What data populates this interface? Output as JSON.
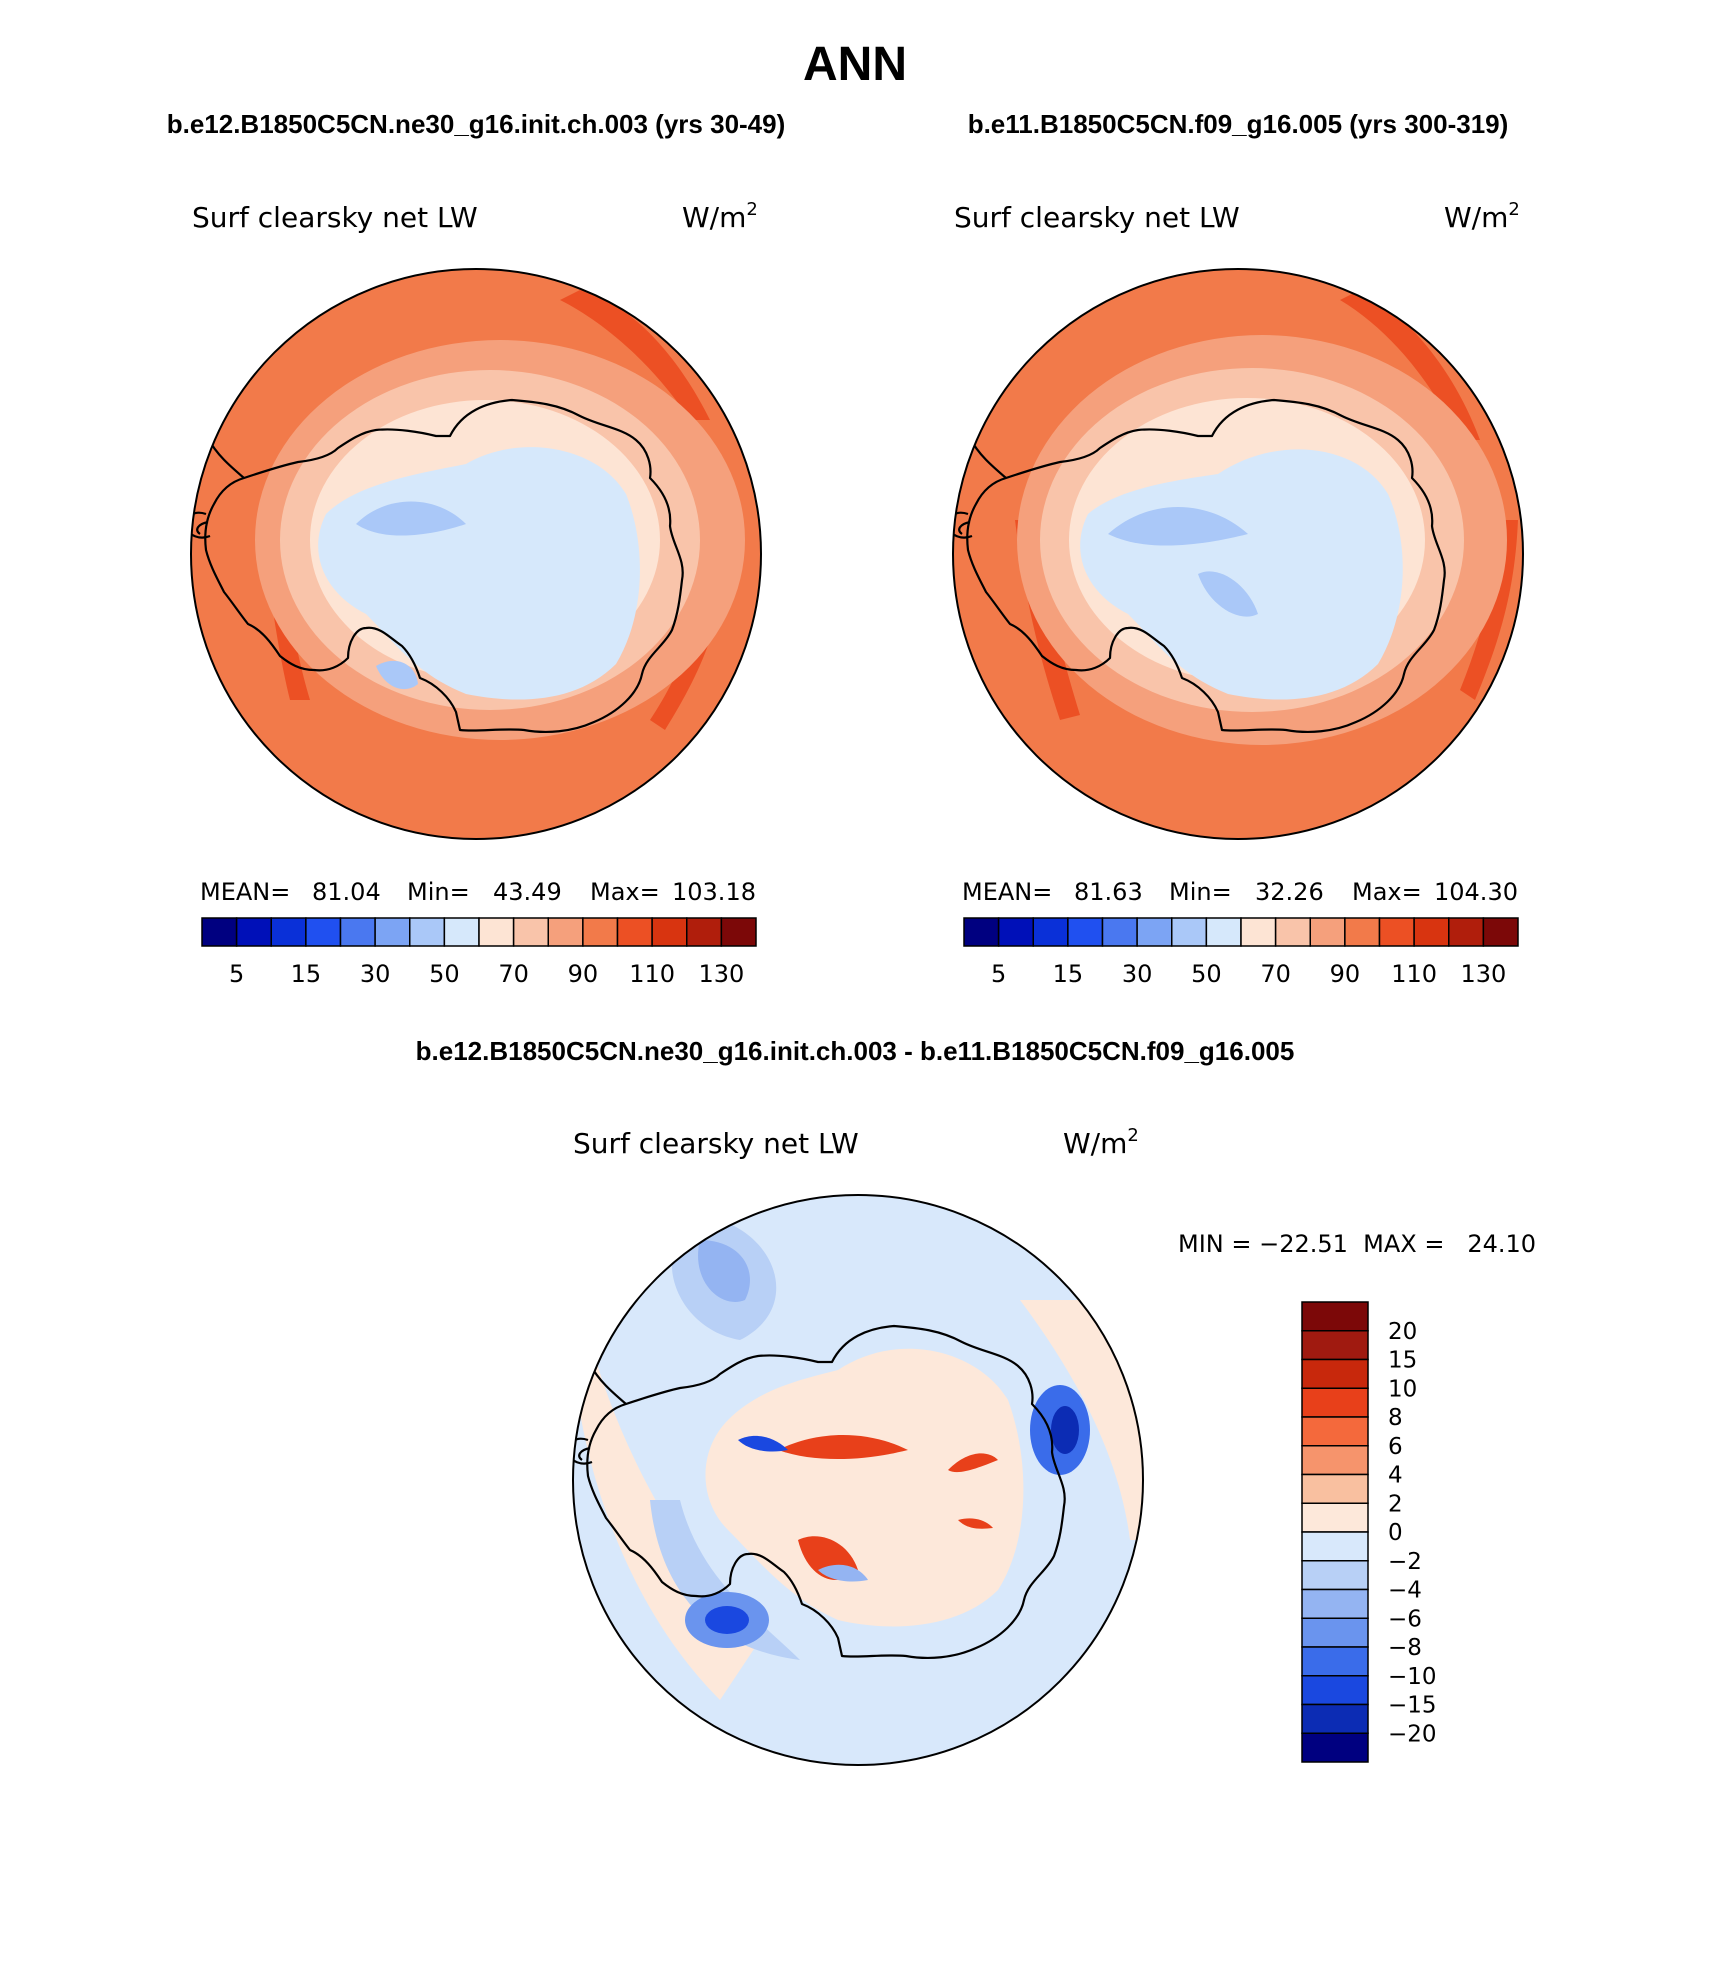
{
  "page_title": "ANN",
  "panel_a": {
    "case_label": "b.e12.B1850C5CN.ne30_g16.init.ch.003 (yrs 30-49)",
    "variable": "Surf clearsky net LW",
    "units": "W/m",
    "units_exp": "2",
    "stats": {
      "mean_label": "MEAN=",
      "mean": "81.04",
      "min_label": "Min=",
      "min": "43.49",
      "max_label": "Max=",
      "max": "103.18"
    }
  },
  "panel_b": {
    "case_label": "b.e11.B1850C5CN.f09_g16.005 (yrs 300-319)",
    "variable": "Surf clearsky net LW",
    "units": "W/m",
    "units_exp": "2",
    "stats": {
      "mean_label": "MEAN=",
      "mean": "81.63",
      "min_label": "Min=",
      "min": "32.26",
      "max_label": "Max=",
      "max": "104.30"
    }
  },
  "panel_diff": {
    "case_label": "b.e12.B1850C5CN.ne30_g16.init.ch.003 - b.e11.B1850C5CN.f09_g16.005",
    "variable": "Surf clearsky net LW",
    "units": "W/m",
    "units_exp": "2",
    "minmax": "MIN = −22.51  MAX =   24.10"
  },
  "colorbar_abs": {
    "colors": [
      "#000080",
      "#0010b8",
      "#0a30d8",
      "#2050f0",
      "#4a78f0",
      "#7ca4f4",
      "#aac8f8",
      "#d6e8fb",
      "#fde4d4",
      "#f9c4aa",
      "#f5a07c",
      "#f27a4a",
      "#ec5024",
      "#d83410",
      "#b01e0c",
      "#7c0808"
    ],
    "tick_labels": [
      "5",
      "15",
      "30",
      "50",
      "70",
      "90",
      "110",
      "130"
    ]
  },
  "colorbar_diff": {
    "colors": [
      "#7c0808",
      "#a01a10",
      "#c8280c",
      "#e8401a",
      "#f4693c",
      "#f6946c",
      "#f9c0a0",
      "#fde8da",
      "#d8e8fb",
      "#b8d0f6",
      "#94b4f2",
      "#6a94ee",
      "#3a6cea",
      "#1a48e0",
      "#0c2cb4",
      "#000080"
    ],
    "tick_labels": [
      "20",
      "15",
      "10",
      "8",
      "6",
      "4",
      "2",
      "0",
      "−2",
      "−4",
      "−6",
      "−8",
      "−10",
      "−15",
      "−20"
    ]
  }
}
